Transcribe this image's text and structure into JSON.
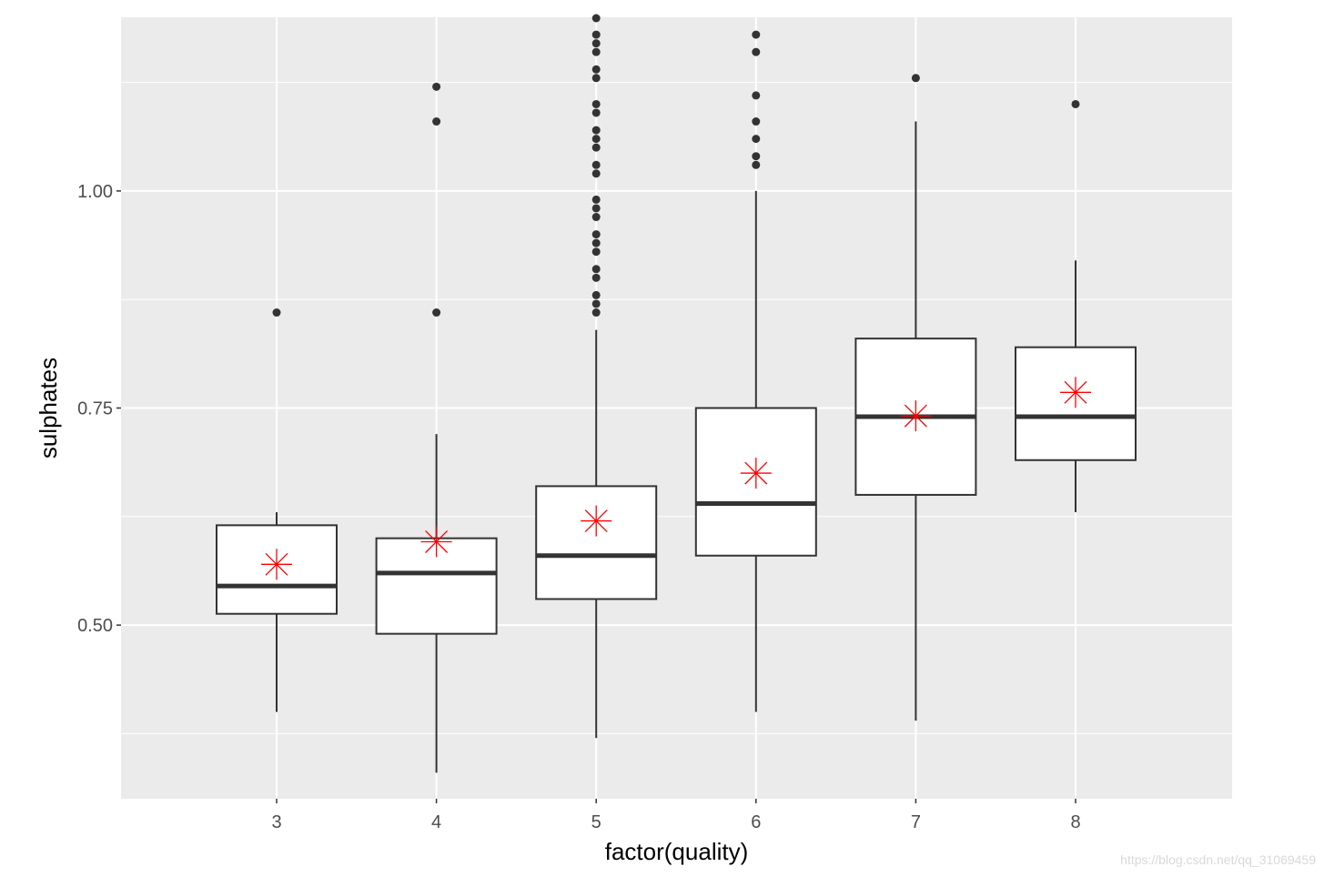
{
  "chart_data": {
    "type": "boxplot",
    "xlabel": "factor(quality)",
    "ylabel": "sulphates",
    "categories": [
      "3",
      "4",
      "5",
      "6",
      "7",
      "8"
    ],
    "y_ticks": [
      0.5,
      0.75,
      1.0
    ],
    "y_tick_labels": [
      "0.50",
      "0.75",
      "1.00"
    ],
    "ylim": [
      0.3,
      1.2
    ],
    "grid": true,
    "colors": {
      "panel": "#ebebeb",
      "grid_major": "#ffffff",
      "box_fill": "#ffffff",
      "box_line": "#333333",
      "outlier": "#333333",
      "mean_marker": "#ff0000"
    },
    "boxes": [
      {
        "category": "3",
        "lower": 0.4,
        "q1": 0.513,
        "median": 0.545,
        "q3": 0.615,
        "upper": 0.63,
        "mean": 0.57,
        "outliers": [
          0.86
        ]
      },
      {
        "category": "4",
        "lower": 0.33,
        "q1": 0.49,
        "median": 0.56,
        "q3": 0.6,
        "upper": 0.72,
        "mean": 0.596,
        "outliers": [
          0.86,
          1.08,
          1.12
        ]
      },
      {
        "category": "5",
        "lower": 0.37,
        "q1": 0.53,
        "median": 0.58,
        "q3": 0.66,
        "upper": 0.84,
        "mean": 0.62,
        "outliers": [
          0.86,
          0.87,
          0.88,
          0.9,
          0.91,
          0.93,
          0.94,
          0.95,
          0.97,
          0.98,
          0.99,
          1.02,
          1.03,
          1.05,
          1.06,
          1.07,
          1.09,
          1.1,
          1.13,
          1.14,
          1.16,
          1.17,
          1.18,
          1.2
        ]
      },
      {
        "category": "6",
        "lower": 0.4,
        "q1": 0.58,
        "median": 0.64,
        "q3": 0.75,
        "upper": 1.0,
        "mean": 0.675,
        "outliers": [
          1.03,
          1.04,
          1.06,
          1.08,
          1.11,
          1.16,
          1.18
        ]
      },
      {
        "category": "7",
        "lower": 0.39,
        "q1": 0.65,
        "median": 0.74,
        "q3": 0.83,
        "upper": 1.08,
        "mean": 0.741,
        "outliers": [
          1.13
        ]
      },
      {
        "category": "8",
        "lower": 0.63,
        "q1": 0.69,
        "median": 0.74,
        "q3": 0.82,
        "upper": 0.92,
        "mean": 0.768,
        "outliers": [
          1.1
        ]
      }
    ]
  },
  "watermark": "https://blog.csdn.net/qq_31069459"
}
